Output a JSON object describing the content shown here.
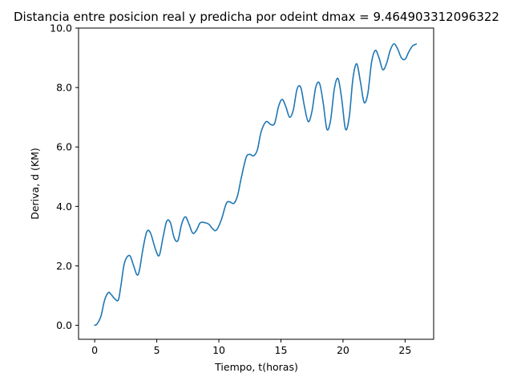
{
  "chart_data": {
    "type": "line",
    "title": "Distancia entre posicion real y predicha por odeint dmax = 9.464903312096322",
    "xlabel": "Tiempo, t(horas)",
    "ylabel": "Deriva, d (KM)",
    "xlim": [
      -1.3,
      27.3
    ],
    "ylim": [
      -0.47,
      10.0
    ],
    "xticks": [
      0,
      5,
      10,
      15,
      20,
      25
    ],
    "xtick_labels": [
      "0",
      "5",
      "10",
      "15",
      "20",
      "25"
    ],
    "yticks": [
      0,
      2,
      4,
      6,
      8,
      10
    ],
    "ytick_labels": [
      "0.0",
      "2.0",
      "4.0",
      "6.0",
      "8.0",
      "10.0"
    ],
    "grid": false,
    "series": [
      {
        "color": "#1f77b4",
        "x": [
          0,
          0.2,
          0.5,
          0.8,
          1.1,
          1.3,
          1.6,
          1.9,
          2.1,
          2.4,
          2.8,
          3.1,
          3.4,
          3.6,
          3.9,
          4.2,
          4.5,
          4.9,
          5.2,
          5.5,
          5.8,
          6.1,
          6.4,
          6.7,
          7.0,
          7.3,
          7.6,
          7.9,
          8.2,
          8.5,
          8.9,
          9.2,
          9.5,
          9.8,
          10.2,
          10.6,
          10.9,
          11.2,
          11.5,
          11.8,
          12.2,
          12.5,
          12.8,
          13.1,
          13.4,
          13.8,
          14.2,
          14.5,
          14.8,
          15.1,
          15.4,
          15.7,
          16.0,
          16.3,
          16.6,
          16.9,
          17.2,
          17.5,
          17.8,
          18.1,
          18.4,
          18.7,
          19.0,
          19.3,
          19.6,
          19.9,
          20.2,
          20.5,
          20.8,
          21.1,
          21.4,
          21.7,
          22.0,
          22.3,
          22.6,
          22.9,
          23.2,
          23.5,
          23.8,
          24.1,
          24.4,
          24.7,
          25.0,
          25.3,
          25.6,
          25.9
        ],
        "y": [
          0.0,
          0.05,
          0.3,
          0.85,
          1.1,
          1.05,
          0.9,
          0.85,
          1.3,
          2.1,
          2.35,
          2.05,
          1.7,
          1.85,
          2.6,
          3.15,
          3.1,
          2.55,
          2.35,
          2.95,
          3.5,
          3.45,
          2.95,
          2.85,
          3.4,
          3.65,
          3.4,
          3.1,
          3.2,
          3.45,
          3.45,
          3.4,
          3.25,
          3.2,
          3.55,
          4.1,
          4.15,
          4.1,
          4.35,
          4.95,
          5.65,
          5.75,
          5.7,
          5.9,
          6.5,
          6.85,
          6.75,
          6.8,
          7.35,
          7.6,
          7.35,
          7.0,
          7.25,
          7.95,
          8.0,
          7.35,
          6.85,
          7.2,
          8.0,
          8.15,
          7.5,
          6.6,
          6.9,
          7.95,
          8.3,
          7.6,
          6.6,
          7.0,
          8.3,
          8.8,
          8.2,
          7.5,
          7.8,
          8.85,
          9.25,
          9.0,
          8.6,
          8.8,
          9.25,
          9.47,
          9.3,
          9.0,
          8.95,
          9.2,
          9.4,
          9.46
        ]
      }
    ]
  }
}
